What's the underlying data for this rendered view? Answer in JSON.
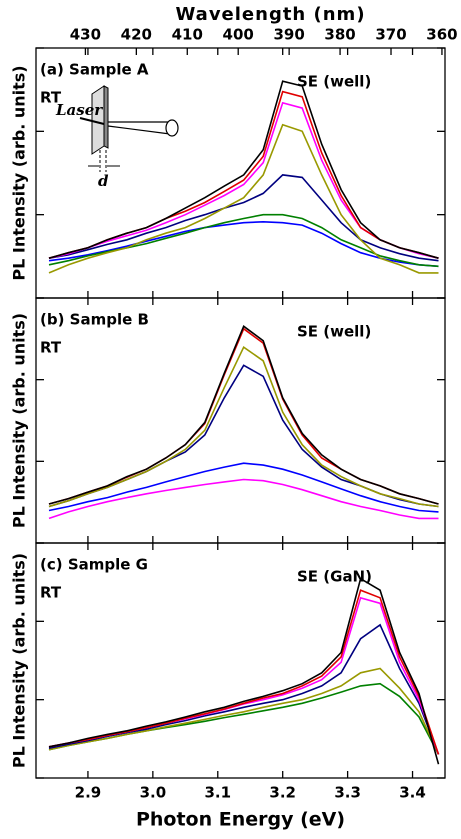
{
  "chart_data": [
    {
      "type": "line",
      "panel_label": "(a) Sample A",
      "condition": "RT",
      "peak_label": "SE (well)",
      "ylabel": "PL Intensity (arb. units)",
      "annotations": [
        "Laser",
        "d"
      ],
      "x2label": "Wavelength (nm)",
      "x2lim": [
        439.7,
        359.4
      ],
      "x2ticks": [
        430,
        420,
        410,
        400,
        390,
        380,
        370,
        360
      ],
      "xlim": [
        2.82,
        3.45
      ],
      "ylim": [
        1,
        1000
      ],
      "yticks": [
        1,
        10,
        100,
        1000
      ],
      "log_y": true,
      "x": [
        2.84,
        2.87,
        2.9,
        2.93,
        2.96,
        2.99,
        3.02,
        3.05,
        3.08,
        3.11,
        3.14,
        3.17,
        3.2,
        3.23,
        3.26,
        3.29,
        3.32,
        3.35,
        3.38,
        3.41,
        3.44
      ],
      "series": [
        {
          "color": "#000000",
          "values": [
            3,
            3.5,
            4,
            5,
            6,
            7,
            9,
            12,
            16,
            22,
            30,
            60,
            400,
            350,
            70,
            20,
            8,
            5,
            4,
            3.5,
            3
          ]
        },
        {
          "color": "#e00000",
          "values": [
            3,
            3.5,
            4,
            5,
            6,
            7,
            9,
            11,
            14,
            19,
            26,
            50,
            300,
            260,
            55,
            17,
            7,
            5,
            4,
            3.5,
            3
          ]
        },
        {
          "color": "#ff00ff",
          "values": [
            3,
            3.4,
            4,
            4.8,
            5.6,
            6.5,
            8,
            10,
            13,
            17,
            23,
            42,
            220,
            190,
            45,
            15,
            7,
            5,
            4,
            3.4,
            3
          ]
        },
        {
          "color": "#999900",
          "values": [
            2,
            2.5,
            3,
            3.5,
            4,
            5,
            6,
            7,
            9,
            12,
            16,
            30,
            120,
            100,
            30,
            10,
            5,
            3,
            2.5,
            2,
            2
          ]
        },
        {
          "color": "#000080",
          "values": [
            3,
            3.3,
            3.8,
            4.4,
            5,
            6,
            7,
            8.5,
            10,
            12,
            14,
            18,
            30,
            28,
            15,
            8,
            5,
            4,
            3.4,
            3,
            2.8
          ]
        },
        {
          "color": "#008000",
          "values": [
            2.5,
            2.8,
            3.2,
            3.6,
            4,
            4.5,
            5.2,
            6,
            7,
            8,
            9,
            10,
            10,
            9,
            7,
            5,
            4,
            3.2,
            2.8,
            2.5,
            2.4
          ]
        },
        {
          "color": "#0000ff",
          "values": [
            2.8,
            3,
            3.3,
            3.7,
            4.2,
            4.8,
            5.5,
            6.3,
            7,
            7.5,
            8,
            8.2,
            8,
            7.5,
            6,
            4.5,
            3.5,
            3,
            2.7,
            2.5,
            2.4
          ]
        }
      ]
    },
    {
      "type": "line",
      "panel_label": "(b) Sample B",
      "condition": "RT",
      "peak_label": "SE (well)",
      "ylabel": "PL Intensity (arb. units)",
      "xlim": [
        2.82,
        3.45
      ],
      "ylim": [
        1,
        1000
      ],
      "yticks": [
        1,
        10,
        100,
        1000
      ],
      "log_y": true,
      "x": [
        2.84,
        2.87,
        2.9,
        2.93,
        2.96,
        2.99,
        3.02,
        3.05,
        3.08,
        3.11,
        3.14,
        3.17,
        3.2,
        3.23,
        3.26,
        3.29,
        3.32,
        3.35,
        3.38,
        3.41,
        3.44
      ],
      "series": [
        {
          "color": "#000000",
          "values": [
            3,
            3.5,
            4.2,
            5,
            6.5,
            8,
            11,
            16,
            30,
            120,
            450,
            300,
            60,
            22,
            12,
            8,
            6,
            5,
            4,
            3.5,
            3
          ]
        },
        {
          "color": "#e00000",
          "values": [
            3,
            3.5,
            4.2,
            5,
            6.4,
            8,
            11,
            16,
            29,
            115,
            420,
            280,
            58,
            21,
            11,
            8,
            6,
            5,
            4,
            3.5,
            3
          ]
        },
        {
          "color": "#999900",
          "values": [
            2.8,
            3.3,
            4,
            4.8,
            6,
            7.5,
            10,
            14,
            24,
            80,
            250,
            170,
            40,
            16,
            9,
            6.5,
            5,
            4,
            3.5,
            3,
            2.8
          ]
        },
        {
          "color": "#000080",
          "values": [
            2.8,
            3.3,
            4,
            4.8,
            6,
            7.5,
            10,
            13,
            21,
            60,
            150,
            110,
            32,
            14,
            8.5,
            6,
            5,
            4,
            3.4,
            3,
            2.8
          ]
        },
        {
          "color": "#ff00ff",
          "values": [
            2,
            2.4,
            2.8,
            3.2,
            3.6,
            4,
            4.4,
            4.8,
            5.2,
            5.6,
            6,
            5.8,
            5.2,
            4.5,
            3.8,
            3.2,
            2.8,
            2.5,
            2.2,
            2,
            2
          ]
        },
        {
          "color": "#0000ff",
          "values": [
            2.5,
            2.8,
            3.2,
            3.6,
            4.2,
            4.8,
            5.6,
            6.5,
            7.5,
            8.5,
            9.5,
            9,
            8,
            6.8,
            5.6,
            4.6,
            3.8,
            3.2,
            2.8,
            2.5,
            2.4
          ]
        }
      ]
    },
    {
      "type": "line",
      "panel_label": "(c) Sample G",
      "condition": "RT",
      "peak_label": "SE (GaN)",
      "ylabel": "PL Intensity (arb. units)",
      "xlabel": "Photon Energy (eV)",
      "xlim": [
        2.82,
        3.45
      ],
      "xticks": [
        2.9,
        {
          "value": 3.0,
          "label": "3.0"
        },
        3.1,
        3.2,
        3.3,
        3.4
      ],
      "ylim": [
        1,
        1000
      ],
      "yticks": [
        1,
        10,
        100,
        1000
      ],
      "log_y": true,
      "x": [
        2.84,
        2.87,
        2.9,
        2.93,
        2.96,
        2.99,
        3.02,
        3.05,
        3.08,
        3.11,
        3.14,
        3.17,
        3.2,
        3.23,
        3.26,
        3.29,
        3.32,
        3.35,
        3.38,
        3.41,
        3.44
      ],
      "series": [
        {
          "color": "#000000",
          "values": [
            2.5,
            2.8,
            3.2,
            3.6,
            4,
            4.6,
            5.2,
            6,
            7,
            8,
            9.5,
            11,
            13,
            16,
            22,
            40,
            350,
            250,
            40,
            12,
            1.5
          ]
        },
        {
          "color": "#e00000",
          "values": [
            2.5,
            2.8,
            3.1,
            3.5,
            3.9,
            4.4,
            5,
            5.8,
            6.6,
            7.6,
            9,
            10.5,
            12,
            15,
            20,
            35,
            250,
            200,
            35,
            11,
            2
          ]
        },
        {
          "color": "#ff00ff",
          "values": [
            2.5,
            2.8,
            3.1,
            3.5,
            3.9,
            4.4,
            5,
            5.7,
            6.5,
            7.5,
            8.8,
            10,
            11.5,
            14,
            18,
            30,
            200,
            170,
            30,
            10,
            2
          ]
        },
        {
          "color": "#000080",
          "values": [
            2.4,
            2.7,
            3,
            3.4,
            3.8,
            4.2,
            4.8,
            5.4,
            6.2,
            7,
            8,
            9,
            10,
            12,
            15,
            22,
            60,
            90,
            25,
            9,
            2
          ]
        },
        {
          "color": "#999900",
          "values": [
            2.3,
            2.6,
            2.9,
            3.2,
            3.6,
            4,
            4.5,
            5,
            5.6,
            6.3,
            7,
            8,
            9,
            10,
            12,
            15,
            22,
            25,
            14,
            7,
            2
          ]
        },
        {
          "color": "#008000",
          "values": [
            2.3,
            2.6,
            2.9,
            3.2,
            3.6,
            4,
            4.4,
            4.8,
            5.3,
            5.9,
            6.5,
            7.2,
            8,
            9,
            10.5,
            12.5,
            15,
            16,
            11,
            6,
            2
          ]
        }
      ]
    }
  ]
}
